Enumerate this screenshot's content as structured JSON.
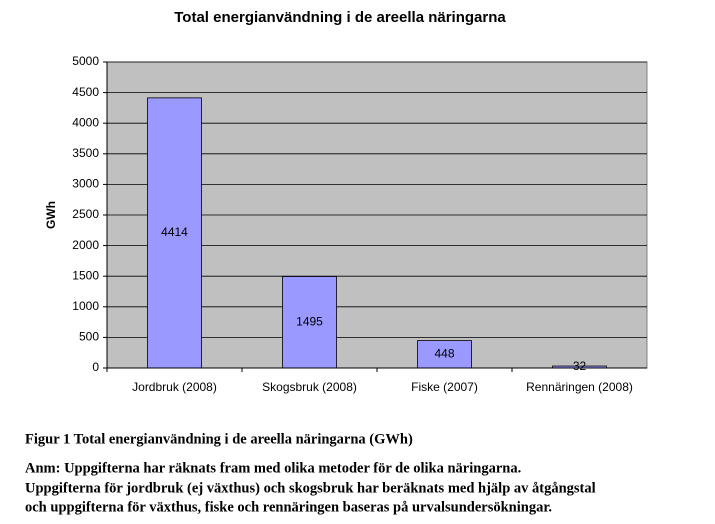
{
  "chart_data": {
    "type": "bar",
    "title": "Total energianvändning i de areella näringarna",
    "y_label": "GWh",
    "categories": [
      "Jordbruk (2008)",
      "Skogsbruk (2008)",
      "Fiske (2007)",
      "Rennäringen (2008)"
    ],
    "values": [
      4414,
      1495,
      448,
      32
    ],
    "color": "#9999ff",
    "ylim": [
      0,
      5000
    ],
    "yticks": [
      0,
      500,
      1000,
      1500,
      2000,
      2500,
      3000,
      3500,
      4000,
      4500,
      5000
    ],
    "grid": true
  },
  "caption": "Figur 1 Total energianvändning i de areella näringarna (GWh)",
  "note": [
    "Anm: Uppgifterna har räknats fram med olika metoder för de olika näringarna.",
    "Uppgifterna för jordbruk (ej växthus) och skogsbruk har beräknats med hjälp av åtgångstal",
    "och uppgifterna för växthus, fiske och rennäringen baseras på urvalsundersökningar."
  ]
}
